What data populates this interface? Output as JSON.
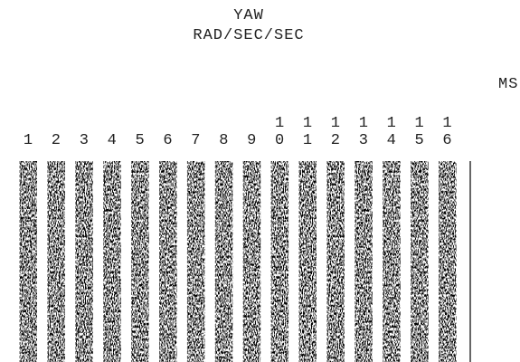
{
  "header": {
    "title": "YAW",
    "units": "RAD/SEC/SEC"
  },
  "columns": [
    "1",
    "2",
    "3",
    "4",
    "5",
    "6",
    "7",
    "8",
    "9",
    "10",
    "11",
    "12",
    "13",
    "14",
    "15",
    "16"
  ],
  "time_label": "MS"
}
